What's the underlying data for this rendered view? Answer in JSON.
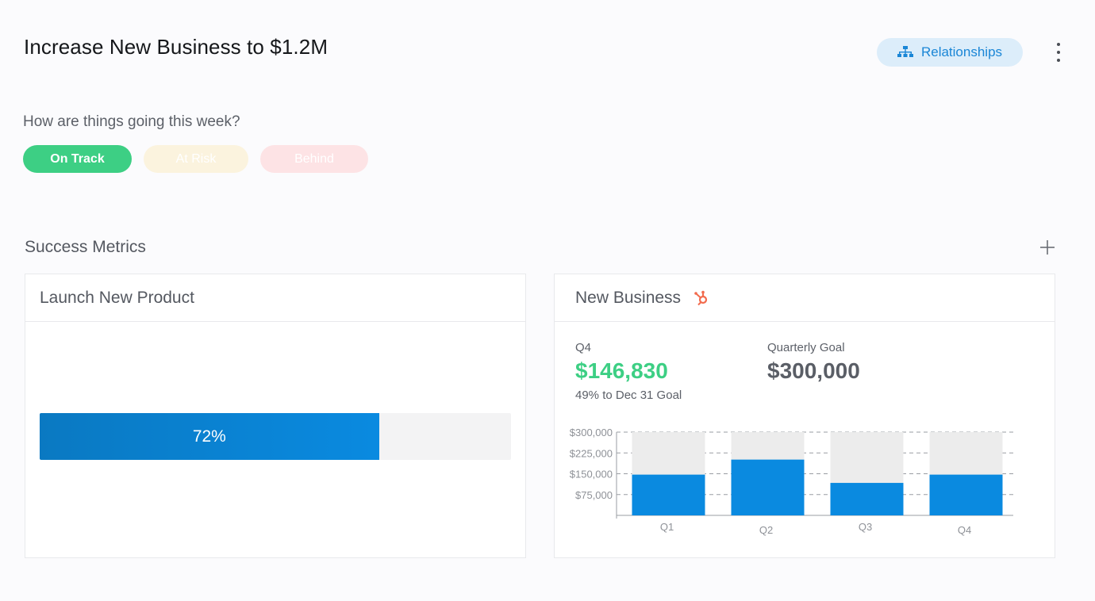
{
  "page": {
    "title": "Increase New Business to $1.2M"
  },
  "header": {
    "relationships_label": "Relationships",
    "relationships_icon": "org-chart-icon",
    "more_icon": "more-vertical-icon"
  },
  "status": {
    "question": "How are things going this week?",
    "options": [
      {
        "label": "On Track",
        "color": "#3dcf84",
        "selected": true
      },
      {
        "label": "At Risk",
        "color": "#fbf3de",
        "selected": false
      },
      {
        "label": "Behind",
        "color": "#fde3e5",
        "selected": false
      }
    ]
  },
  "metrics": {
    "title": "Success Metrics",
    "add_icon": "plus-icon",
    "cards": [
      {
        "title": "Launch New Product",
        "progress": 0.72,
        "progress_label": "72%"
      },
      {
        "title": "New Business",
        "source_icon": "hubspot-icon",
        "current_period": "Q4",
        "current_value": "$146,830",
        "current_sub": "49% to Dec 31 Goal",
        "goal_label": "Quarterly Goal",
        "goal_value": "$300,000",
        "accent_color": "#3dcf84"
      }
    ]
  },
  "chart_data": {
    "type": "bar",
    "categories": [
      "Q1",
      "Q2",
      "Q3",
      "Q4"
    ],
    "series": [
      {
        "values": [
          146830,
          201000,
          117000,
          146830
        ],
        "color": "#0a8ae0"
      },
      {
        "values": [
          300000,
          300000,
          300000,
          300000
        ],
        "color": "#ececec"
      }
    ],
    "ylim": [
      0,
      300000
    ],
    "yticks": [
      75000,
      150000,
      225000,
      300000
    ],
    "ytick_labels": [
      "$75,000",
      "$150,000",
      "$225,000",
      "$300,000"
    ],
    "grid": true
  }
}
